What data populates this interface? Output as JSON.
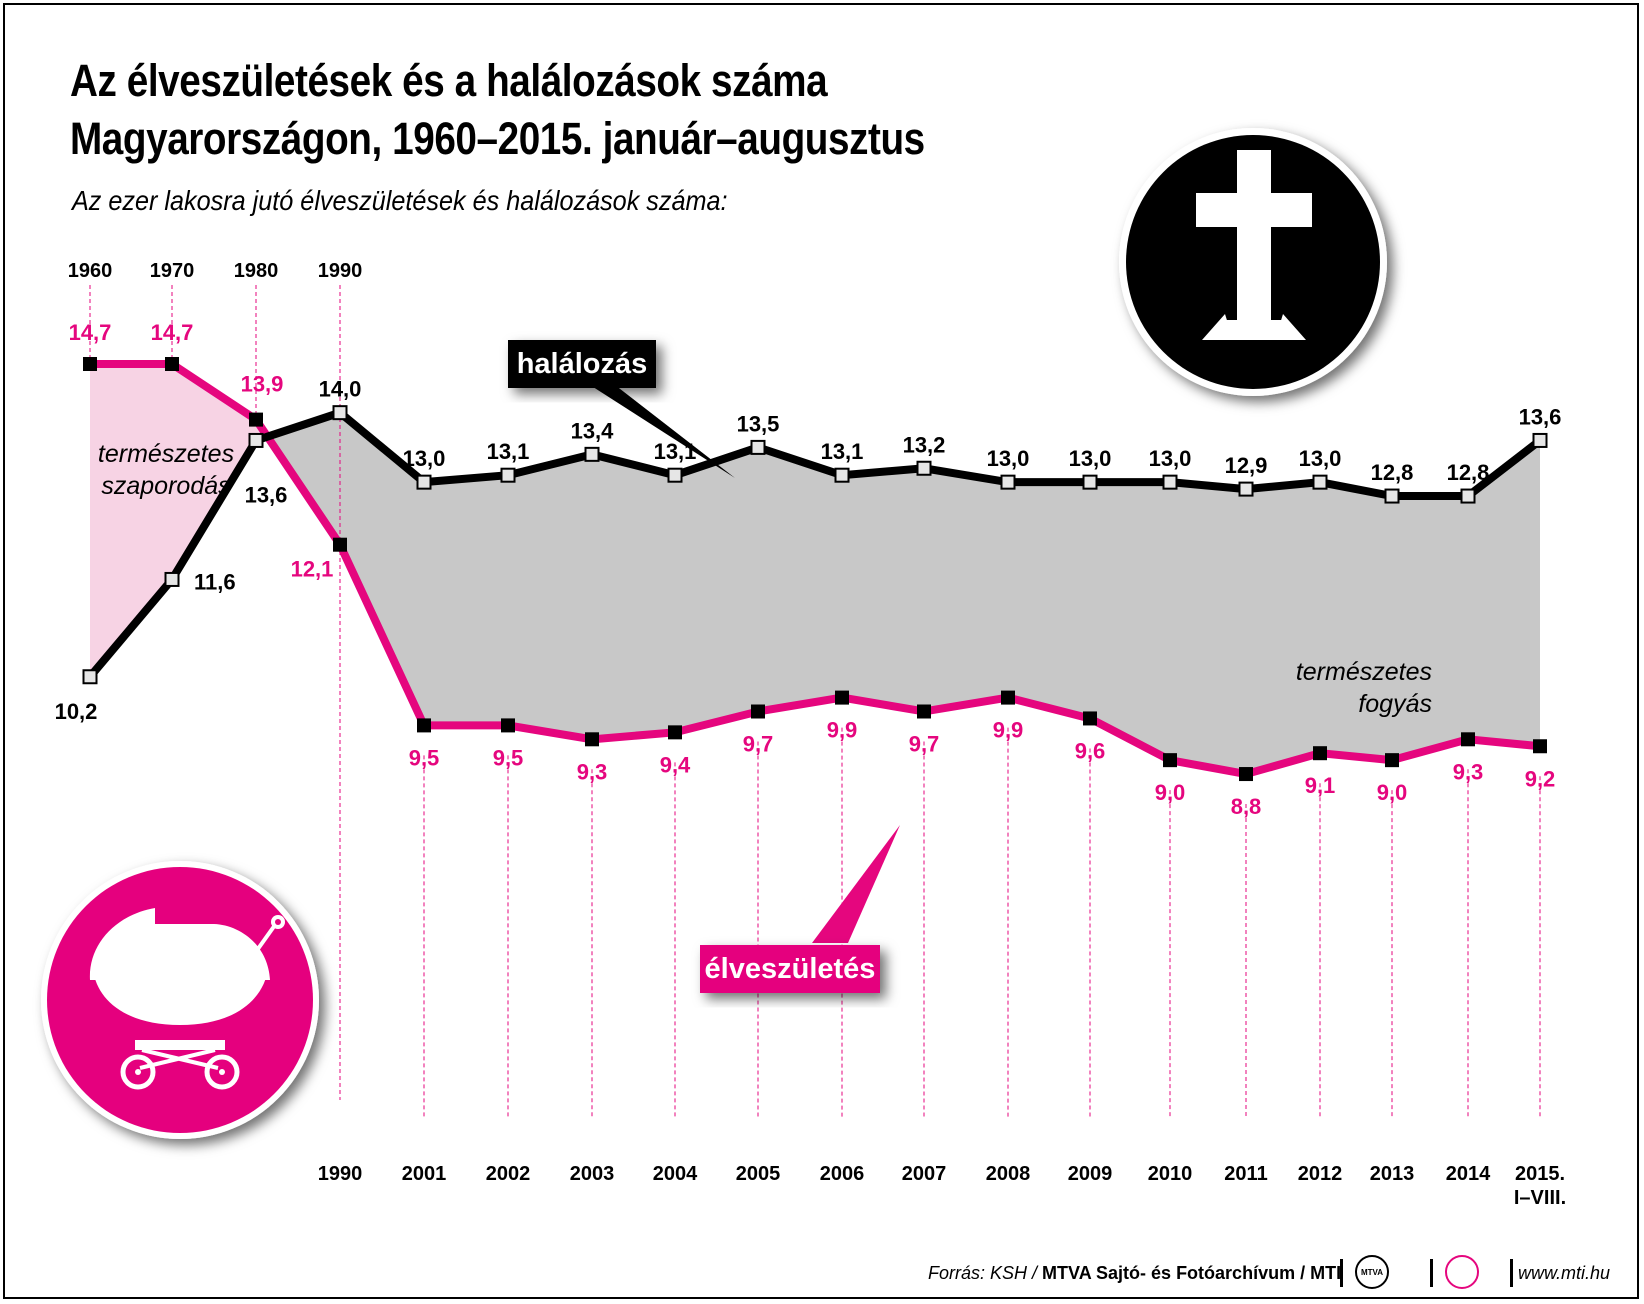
{
  "title_line1": "Az élveszületések és a halálozások száma",
  "title_line2": "Magyarországon, 1960–2015. január–augusztus",
  "subtitle": "Az ezer lakosra jutó élveszületések és halálozások száma:",
  "labels": {
    "halalozas": "halálozás",
    "elveszuletes": "élveszületés",
    "szaporodas_line1": "természetes",
    "szaporodas_line2": "szaporodás",
    "fogyas_line1": "természetes",
    "fogyas_line2": "fogyás"
  },
  "footer": {
    "source_prefix": "Forrás: KSH /",
    "source_bold": "MTVA Sajtó- és Fotóarchívum / MTI",
    "logo_text": "MTVA",
    "website": "www.mti.hu"
  },
  "colors": {
    "births": "#e5067e",
    "deaths": "#000000",
    "decrease_fill": "#c8c8c8",
    "increase_fill": "#f7d3e4"
  },
  "icons": [
    "cross-icon",
    "baby-carriage-icon"
  ],
  "chart_data": {
    "type": "line",
    "x": [
      "1960",
      "1970",
      "1980",
      "1990",
      "2001",
      "2002",
      "2003",
      "2004",
      "2005",
      "2006",
      "2007",
      "2008",
      "2009",
      "2010",
      "2011",
      "2012",
      "2013",
      "2014",
      "2015. I–VIII."
    ],
    "top_axis_labels": [
      "1960",
      "1970",
      "1980",
      "1990"
    ],
    "bottom_axis_labels": [
      "1990",
      "2001",
      "2002",
      "2003",
      "2004",
      "2005",
      "2006",
      "2007",
      "2008",
      "2009",
      "2010",
      "2011",
      "2012",
      "2013",
      "2014",
      "2015.",
      "I–VIII."
    ],
    "series": [
      {
        "name": "halálozás",
        "values": [
          10.2,
          11.6,
          13.6,
          14.0,
          13.0,
          13.1,
          13.4,
          13.1,
          13.5,
          13.1,
          13.2,
          13.0,
          13.0,
          13.0,
          12.9,
          13.0,
          12.8,
          12.8,
          13.6
        ],
        "labels": [
          "10,2",
          "11,6",
          "13,6",
          "14,0",
          "13,0",
          "13,1",
          "13,4",
          "13,1",
          "13,5",
          "13,1",
          "13,2",
          "13,0",
          "13,0",
          "13,0",
          "12,9",
          "13,0",
          "12,8",
          "12,8",
          "13,6"
        ]
      },
      {
        "name": "élveszületés",
        "values": [
          14.7,
          14.7,
          13.9,
          12.1,
          9.5,
          9.5,
          9.3,
          9.4,
          9.7,
          9.9,
          9.7,
          9.9,
          9.6,
          9.0,
          8.8,
          9.1,
          9.0,
          9.3,
          9.2
        ],
        "labels": [
          "14,7",
          "14,7",
          "13,9",
          "12,1",
          "9,5",
          "9,5",
          "9,3",
          "9,4",
          "9,7",
          "9,9",
          "9,7",
          "9,9",
          "9,6",
          "9,0",
          "8,8",
          "9,1",
          "9,0",
          "9,3",
          "9,2"
        ]
      }
    ],
    "grid": false
  }
}
